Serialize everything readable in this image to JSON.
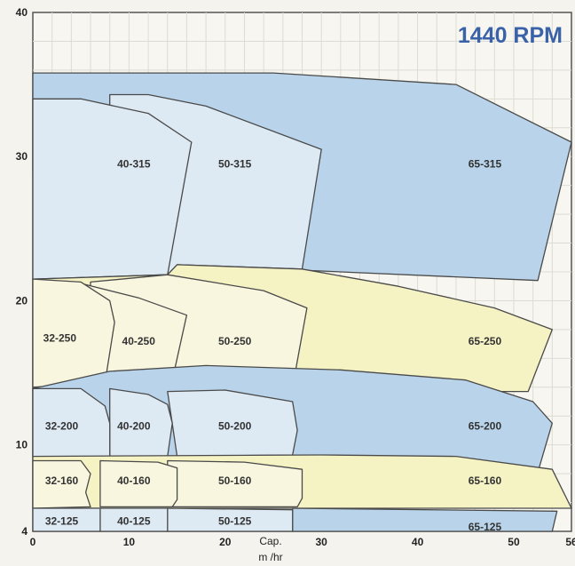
{
  "chart_data": {
    "type": "area",
    "title": "1440 RPM",
    "xlabel_line1": "Cap.",
    "xlabel_line2": "m /hr",
    "xlim": [
      0,
      56
    ],
    "ylim": [
      4,
      40
    ],
    "x_ticks": [
      0,
      10,
      20,
      30,
      40,
      50,
      56
    ],
    "y_ticks": [
      4,
      10,
      20,
      30,
      40
    ],
    "grid": true,
    "colors": {
      "blue": "#b9d4ea",
      "blue_light": "#dde9f3",
      "yellow": "#f5f2c4",
      "yellow_light": "#f8f6de",
      "outline": "#4a4a4a"
    },
    "regions": [
      {
        "label": "65-315",
        "color": "blue",
        "label_at": [
          47,
          29.5
        ],
        "outline": [
          [
            0,
            29
          ],
          [
            0,
            35.8
          ],
          [
            25,
            35.8
          ],
          [
            44,
            35
          ],
          [
            56,
            31
          ],
          [
            52.5,
            21.4
          ],
          [
            15,
            22.5
          ]
        ]
      },
      {
        "label": "50-315",
        "color": "blue_light",
        "label_at": [
          21,
          29.5
        ],
        "outline": [
          [
            8,
            34.3
          ],
          [
            12,
            34.3
          ],
          [
            18,
            33.5
          ],
          [
            30,
            30.5
          ],
          [
            28,
            22.2
          ],
          [
            15,
            22.5
          ],
          [
            14,
            21.8
          ],
          [
            8,
            21.5
          ]
        ]
      },
      {
        "label": "40-315",
        "color": "blue_light",
        "label_at": [
          10.5,
          29.5
        ],
        "outline": [
          [
            0,
            21.5
          ],
          [
            0,
            34
          ],
          [
            5,
            34
          ],
          [
            12,
            33
          ],
          [
            16.5,
            31
          ],
          [
            14,
            21.8
          ]
        ]
      },
      {
        "label": "65-250",
        "color": "yellow",
        "label_at": [
          47,
          17.2
        ],
        "outline": [
          [
            14,
            21.8
          ],
          [
            15,
            22.5
          ],
          [
            28,
            22.2
          ],
          [
            38,
            21
          ],
          [
            48,
            19.5
          ],
          [
            54,
            18
          ],
          [
            51.5,
            13.7
          ],
          [
            0,
            13.7
          ],
          [
            0,
            21.5
          ]
        ]
      },
      {
        "label": "50-250",
        "color": "yellow_light",
        "label_at": [
          21,
          17.2
        ],
        "outline": [
          [
            6,
            21.3
          ],
          [
            14,
            21.8
          ],
          [
            24,
            20.7
          ],
          [
            28.5,
            19.5
          ],
          [
            27,
            14
          ],
          [
            6,
            13.8
          ]
        ]
      },
      {
        "label": "40-250",
        "color": "yellow_light",
        "label_at": [
          11,
          17.2
        ],
        "outline": [
          [
            5,
            21.2
          ],
          [
            11,
            20.2
          ],
          [
            16,
            19
          ],
          [
            14.5,
            14.5
          ],
          [
            5,
            14.3
          ]
        ]
      },
      {
        "label": "32-250",
        "color": "yellow_light",
        "label_at": [
          2.8,
          17.4
        ],
        "outline": [
          [
            0,
            14
          ],
          [
            0,
            21.5
          ],
          [
            5,
            21.3
          ],
          [
            8,
            20
          ],
          [
            8.5,
            18.5
          ],
          [
            7.5,
            14.3
          ]
        ]
      },
      {
        "label": "65-200",
        "color": "blue",
        "label_at": [
          47,
          11.3
        ],
        "outline": [
          [
            0,
            13.9
          ],
          [
            8,
            15.1
          ],
          [
            18,
            15.5
          ],
          [
            32,
            15.2
          ],
          [
            45,
            14.5
          ],
          [
            52,
            13
          ],
          [
            54,
            11.5
          ],
          [
            52.5,
            8.1
          ],
          [
            0,
            9.2
          ]
        ]
      },
      {
        "label": "50-200",
        "color": "blue_light",
        "label_at": [
          21,
          11.3
        ],
        "outline": [
          [
            14,
            13.7
          ],
          [
            20,
            13.8
          ],
          [
            27,
            13
          ],
          [
            27.5,
            11
          ],
          [
            27,
            9.3
          ],
          [
            15,
            9.2
          ]
        ]
      },
      {
        "label": "40-200",
        "color": "blue_light",
        "label_at": [
          10.5,
          11.3
        ],
        "outline": [
          [
            8,
            13.9
          ],
          [
            12,
            13.5
          ],
          [
            14,
            12.8
          ],
          [
            14.5,
            11.5
          ],
          [
            14,
            9.2
          ],
          [
            8,
            9.2
          ]
        ]
      },
      {
        "label": "32-200",
        "color": "blue_light",
        "label_at": [
          3,
          11.3
        ],
        "outline": [
          [
            0,
            9.2
          ],
          [
            0,
            13.9
          ],
          [
            5,
            13.9
          ],
          [
            7.5,
            12.7
          ],
          [
            8,
            11.5
          ],
          [
            8,
            9.2
          ]
        ]
      },
      {
        "label": "65-160",
        "color": "yellow",
        "label_at": [
          47,
          7.5
        ],
        "outline": [
          [
            0,
            9.2
          ],
          [
            30,
            9.3
          ],
          [
            44,
            9.2
          ],
          [
            54,
            8.3
          ],
          [
            56,
            5.6
          ],
          [
            30,
            5.6
          ],
          [
            0,
            5.6
          ]
        ]
      },
      {
        "label": "50-160",
        "color": "yellow_light",
        "label_at": [
          21,
          7.5
        ],
        "outline": [
          [
            14,
            8.9
          ],
          [
            22,
            8.8
          ],
          [
            28,
            8.3
          ],
          [
            28,
            6.3
          ],
          [
            27.5,
            5.7
          ],
          [
            14,
            5.7
          ]
        ]
      },
      {
        "label": "40-160",
        "color": "yellow_light",
        "label_at": [
          10.5,
          7.5
        ],
        "outline": [
          [
            7,
            8.9
          ],
          [
            13,
            8.8
          ],
          [
            15,
            8.4
          ],
          [
            15,
            6.2
          ],
          [
            14.5,
            5.7
          ],
          [
            7,
            5.7
          ]
        ]
      },
      {
        "label": "32-160",
        "color": "yellow_light",
        "label_at": [
          3,
          7.5
        ],
        "outline": [
          [
            0,
            5.6
          ],
          [
            0,
            8.9
          ],
          [
            5,
            8.9
          ],
          [
            6,
            8
          ],
          [
            5.5,
            6.7
          ],
          [
            6,
            5.7
          ]
        ]
      },
      {
        "label": "65-125",
        "color": "blue",
        "label_at": [
          47,
          4.3
        ],
        "outline": [
          [
            27,
            4
          ],
          [
            27,
            5.6
          ],
          [
            54.5,
            5.4
          ],
          [
            54,
            4
          ]
        ]
      },
      {
        "label": "50-125",
        "color": "blue_light",
        "label_at": [
          21,
          4.7
        ],
        "outline": [
          [
            14,
            4
          ],
          [
            14,
            5.6
          ],
          [
            27,
            5.5
          ],
          [
            27,
            4
          ]
        ]
      },
      {
        "label": "40-125",
        "color": "blue_light",
        "label_at": [
          10.5,
          4.7
        ],
        "outline": [
          [
            7,
            4
          ],
          [
            7,
            5.6
          ],
          [
            14,
            5.6
          ],
          [
            14,
            4
          ]
        ]
      },
      {
        "label": "32-125",
        "color": "blue_light",
        "label_at": [
          3,
          4.7
        ],
        "outline": [
          [
            0,
            4
          ],
          [
            0,
            5.6
          ],
          [
            7,
            5.6
          ],
          [
            7,
            4
          ]
        ]
      }
    ]
  }
}
